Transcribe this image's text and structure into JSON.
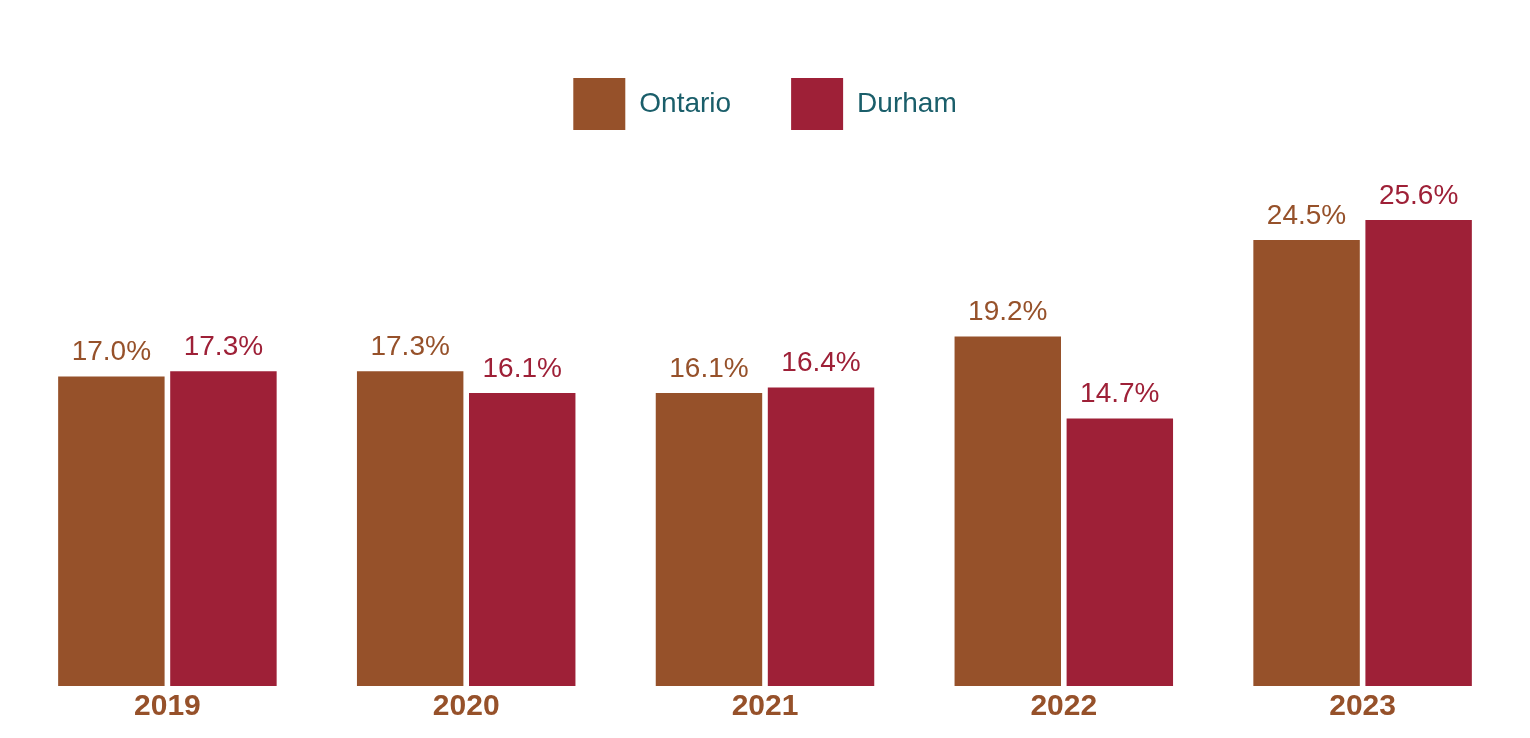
{
  "chart_data": {
    "type": "bar",
    "categories": [
      "2019",
      "2020",
      "2021",
      "2022",
      "2023"
    ],
    "series": [
      {
        "name": "Ontario",
        "color": "#96512a",
        "values": [
          17.0,
          17.3,
          16.1,
          19.2,
          24.5
        ],
        "value_labels": [
          "17.0%",
          "17.3%",
          "16.1%",
          "19.2%",
          "24.5%"
        ]
      },
      {
        "name": "Durham",
        "color": "#9e2037",
        "values": [
          17.3,
          16.1,
          16.4,
          14.7,
          25.6
        ],
        "value_labels": [
          "17.3%",
          "16.1%",
          "16.4%",
          "14.7%",
          "25.6%"
        ]
      }
    ],
    "legend": "top",
    "grid": false
  }
}
